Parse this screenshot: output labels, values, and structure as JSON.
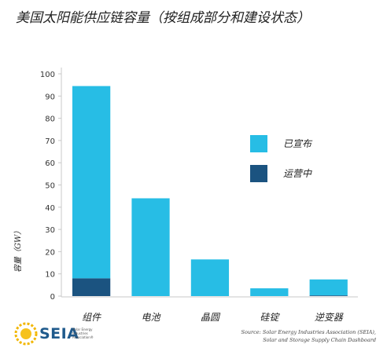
{
  "title": "美国太阳能供应链容量（按组成部分和建设状态）",
  "chart_data": {
    "type": "bar",
    "stacked": true,
    "categories": [
      "组件",
      "电池",
      "晶圆",
      "硅锭",
      "逆变器"
    ],
    "series": [
      {
        "name": "运营中",
        "color": "#1b5380",
        "values": [
          8,
          0,
          0,
          0,
          0.3
        ]
      },
      {
        "name": "已宣布",
        "color": "#27bde5",
        "values": [
          86.5,
          44,
          16.5,
          3.5,
          7.2
        ]
      }
    ],
    "ylabel": "容量（GW）",
    "ylim": [
      0,
      100
    ],
    "yticks": [
      0,
      10,
      20,
      30,
      40,
      50,
      60,
      70,
      80,
      90,
      100
    ],
    "grid": false,
    "legend_position": "right",
    "legend": [
      {
        "label": "已宣布",
        "color": "#27bde5"
      },
      {
        "label": "运营中",
        "color": "#1b5380"
      }
    ]
  },
  "logo": {
    "name": "SEIA",
    "subtitle": [
      "Solar Energy",
      "Industries",
      "Association®"
    ]
  },
  "source": {
    "line1": "Source: Solar Energy Industries Association (SEIA),",
    "line2": "Solar and Storage Supply Chain Dashboard"
  }
}
